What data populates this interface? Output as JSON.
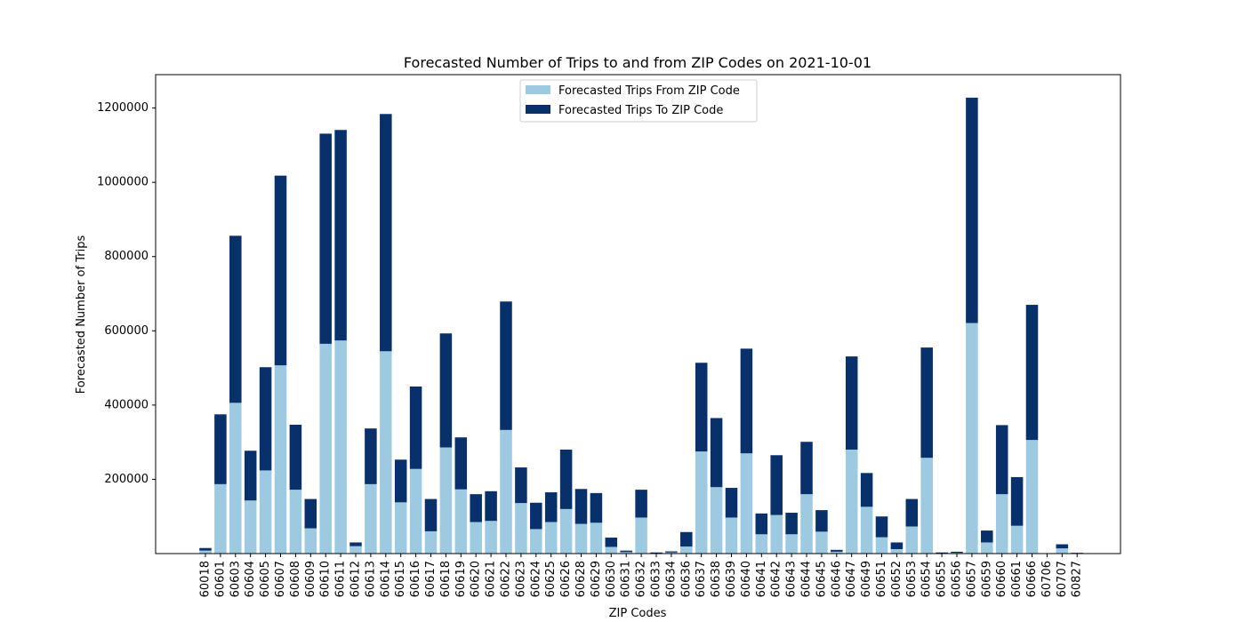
{
  "chart_data": {
    "type": "bar",
    "stacked": true,
    "title": "Forecasted Number of Trips to and from ZIP Codes on 2021-10-01",
    "xlabel": "ZIP Codes",
    "ylabel": "Forecasted Number of Trips",
    "ylim": [
      0,
      1290000
    ],
    "yticks": [
      200000,
      400000,
      600000,
      800000,
      1000000,
      1200000
    ],
    "grid": false,
    "legend_position": "top-center",
    "categories": [
      "60018",
      "60601",
      "60603",
      "60604",
      "60605",
      "60607",
      "60608",
      "60609",
      "60610",
      "60611",
      "60612",
      "60613",
      "60614",
      "60615",
      "60616",
      "60617",
      "60618",
      "60619",
      "60620",
      "60621",
      "60622",
      "60623",
      "60624",
      "60625",
      "60626",
      "60628",
      "60629",
      "60630",
      "60631",
      "60632",
      "60633",
      "60634",
      "60636",
      "60637",
      "60638",
      "60639",
      "60640",
      "60641",
      "60642",
      "60643",
      "60644",
      "60645",
      "60646",
      "60647",
      "60649",
      "60651",
      "60652",
      "60653",
      "60654",
      "60655",
      "60656",
      "60657",
      "60659",
      "60660",
      "60661",
      "60666",
      "60706",
      "60707",
      "60827"
    ],
    "series": [
      {
        "name": "Forecasted Trips From ZIP Code",
        "color": "#9ecae1",
        "values": [
          8000,
          187000,
          406000,
          143000,
          224000,
          507000,
          172000,
          68000,
          565000,
          574000,
          20000,
          187000,
          545000,
          138000,
          228000,
          60000,
          286000,
          173000,
          85000,
          88000,
          333000,
          136000,
          66000,
          85000,
          120000,
          80000,
          83000,
          18000,
          4000,
          97000,
          1000,
          3000,
          19000,
          275000,
          179000,
          97000,
          270000,
          52000,
          104000,
          52000,
          160000,
          59000,
          5000,
          280000,
          126000,
          44000,
          12000,
          73000,
          258000,
          1000,
          2000,
          621000,
          30000,
          160000,
          75000,
          306000,
          0,
          14000,
          1000
        ]
      },
      {
        "name": "Forecasted Trips To ZIP Code",
        "color": "#08306b",
        "values": [
          7000,
          188000,
          450000,
          134000,
          278000,
          511000,
          175000,
          79000,
          566000,
          567000,
          10000,
          150000,
          639000,
          115000,
          222000,
          87000,
          307000,
          140000,
          75000,
          80000,
          346000,
          96000,
          71000,
          80000,
          160000,
          94000,
          80000,
          25000,
          4000,
          75000,
          2000,
          3000,
          39000,
          239000,
          186000,
          80000,
          282000,
          56000,
          161000,
          58000,
          141000,
          58000,
          5000,
          251000,
          91000,
          56000,
          18000,
          74000,
          297000,
          2000,
          3000,
          607000,
          32000,
          186000,
          131000,
          364000,
          0,
          11000,
          1000
        ]
      }
    ]
  }
}
